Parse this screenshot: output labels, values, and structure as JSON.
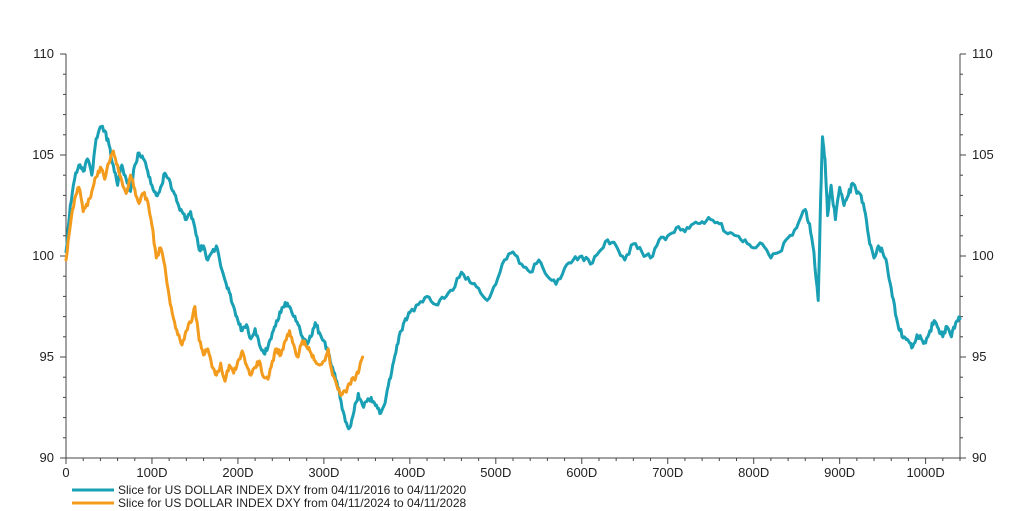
{
  "chart_data": {
    "type": "line",
    "title": "",
    "xlabel": "",
    "ylabel": "",
    "xlim": [
      0,
      1040
    ],
    "ylim": [
      90,
      110
    ],
    "x_ticks": [
      0,
      100,
      200,
      300,
      400,
      500,
      600,
      700,
      800,
      900,
      1000
    ],
    "x_tick_labels": [
      "0",
      "100D",
      "200D",
      "300D",
      "400D",
      "500D",
      "600D",
      "700D",
      "800D",
      "900D",
      "1000D"
    ],
    "y_ticks": [
      90,
      95,
      100,
      105,
      110
    ],
    "y_tick_labels": [
      "90",
      "95",
      "100",
      "105",
      "110"
    ],
    "y_axis_right": true,
    "grid": false,
    "legend_position": "bottom-left",
    "series": [
      {
        "name": "Slice for US DOLLAR INDEX DXY from 04/11/2016 to 04/11/2020",
        "color": "#1aa0b4",
        "x": [
          0,
          5,
          10,
          15,
          20,
          25,
          30,
          35,
          40,
          45,
          50,
          55,
          60,
          65,
          70,
          75,
          80,
          85,
          90,
          95,
          100,
          105,
          110,
          115,
          120,
          125,
          130,
          135,
          140,
          145,
          150,
          155,
          160,
          165,
          170,
          175,
          180,
          185,
          190,
          195,
          200,
          205,
          210,
          215,
          220,
          225,
          230,
          235,
          240,
          245,
          250,
          255,
          260,
          265,
          270,
          275,
          280,
          285,
          290,
          295,
          300,
          305,
          310,
          315,
          320,
          325,
          330,
          335,
          340,
          345,
          350,
          355,
          360,
          365,
          370,
          375,
          380,
          385,
          390,
          395,
          400,
          410,
          420,
          430,
          440,
          450,
          460,
          470,
          480,
          490,
          500,
          510,
          520,
          530,
          540,
          550,
          560,
          570,
          580,
          590,
          600,
          610,
          620,
          630,
          640,
          650,
          660,
          670,
          680,
          690,
          700,
          710,
          720,
          730,
          740,
          750,
          760,
          770,
          780,
          790,
          800,
          810,
          820,
          830,
          840,
          850,
          860,
          865,
          870,
          875,
          878,
          880,
          883,
          886,
          890,
          895,
          900,
          905,
          910,
          915,
          920,
          925,
          930,
          935,
          940,
          945,
          950,
          955,
          960,
          965,
          970,
          975,
          980,
          985,
          990,
          995,
          1000,
          1005,
          1010,
          1015,
          1020,
          1025,
          1030,
          1035,
          1040
        ],
        "y": [
          100.2,
          102.5,
          103.8,
          104.5,
          104.2,
          104.8,
          104.0,
          105.8,
          106.4,
          106.2,
          105.5,
          104.5,
          103.5,
          104.5,
          103.8,
          103.2,
          104.5,
          105.1,
          104.8,
          104.2,
          103.5,
          103.0,
          103.4,
          104.1,
          103.8,
          103.2,
          102.6,
          102.2,
          101.8,
          102.2,
          101.4,
          100.3,
          100.5,
          99.8,
          100.2,
          100.5,
          99.5,
          98.8,
          98.2,
          97.5,
          96.8,
          96.3,
          96.6,
          95.9,
          96.4,
          95.6,
          95.2,
          95.5,
          96.2,
          96.8,
          97.2,
          97.7,
          97.5,
          97.0,
          96.6,
          96.0,
          95.6,
          96.0,
          96.7,
          96.2,
          95.8,
          95.2,
          94.5,
          93.8,
          92.8,
          91.8,
          91.5,
          92.3,
          93.2,
          92.6,
          92.8,
          93.0,
          92.6,
          92.2,
          92.6,
          93.6,
          94.6,
          95.6,
          96.3,
          96.9,
          97.2,
          97.6,
          98.0,
          97.6,
          97.9,
          98.3,
          99.2,
          98.7,
          98.4,
          97.8,
          98.6,
          99.8,
          100.2,
          99.6,
          99.2,
          99.8,
          99.0,
          98.6,
          99.4,
          99.8,
          100.0,
          99.6,
          100.2,
          100.8,
          100.5,
          99.8,
          100.6,
          100.2,
          99.9,
          100.8,
          101.0,
          101.4,
          101.2,
          101.6,
          101.7,
          101.8,
          101.6,
          101.1,
          101.0,
          100.8,
          100.4,
          100.6,
          99.9,
          100.2,
          100.9,
          101.4,
          102.3,
          101.6,
          100.2,
          97.8,
          103.0,
          105.9,
          104.8,
          102.0,
          103.5,
          101.8,
          103.4,
          102.5,
          103.0,
          103.6,
          103.1,
          103.0,
          102.1,
          100.6,
          99.9,
          100.5,
          100.2,
          99.6,
          98.4,
          97.1,
          96.3,
          96.0,
          95.8,
          95.5,
          96.1,
          95.9,
          95.7,
          96.3,
          96.8,
          96.4,
          96.0,
          96.5,
          96.0,
          96.7,
          96.9
        ]
      },
      {
        "name": "Slice for US DOLLAR INDEX DXY from 04/11/2024 to 04/11/2028",
        "color": "#f39b1c",
        "x": [
          0,
          5,
          10,
          15,
          20,
          25,
          30,
          35,
          40,
          45,
          50,
          55,
          60,
          65,
          70,
          75,
          80,
          85,
          90,
          95,
          100,
          105,
          110,
          115,
          120,
          125,
          130,
          135,
          140,
          145,
          150,
          155,
          160,
          165,
          170,
          175,
          180,
          185,
          190,
          195,
          200,
          205,
          210,
          215,
          220,
          225,
          230,
          235,
          240,
          245,
          250,
          255,
          260,
          265,
          270,
          275,
          280,
          285,
          290,
          295,
          300,
          305,
          310,
          315,
          320,
          325,
          330,
          335,
          340,
          345
        ],
        "y": [
          99.8,
          101.5,
          102.8,
          103.4,
          102.2,
          102.5,
          103.2,
          103.9,
          104.4,
          103.8,
          104.6,
          105.2,
          104.5,
          103.7,
          103.1,
          104.0,
          103.3,
          102.6,
          103.1,
          102.7,
          101.5,
          99.9,
          100.4,
          99.5,
          98.0,
          96.9,
          96.1,
          95.6,
          96.3,
          96.7,
          97.5,
          95.8,
          95.1,
          95.4,
          94.5,
          94.1,
          94.7,
          93.8,
          94.6,
          94.2,
          94.8,
          95.3,
          94.6,
          94.1,
          94.5,
          94.8,
          94.0,
          93.9,
          94.8,
          95.4,
          95.1,
          95.8,
          96.3,
          95.6,
          95.0,
          95.8,
          95.5,
          95.2,
          94.8,
          94.6,
          94.8,
          95.4,
          94.1,
          93.6,
          93.1,
          93.3,
          93.7,
          93.9,
          94.2,
          95.0
        ]
      }
    ]
  }
}
